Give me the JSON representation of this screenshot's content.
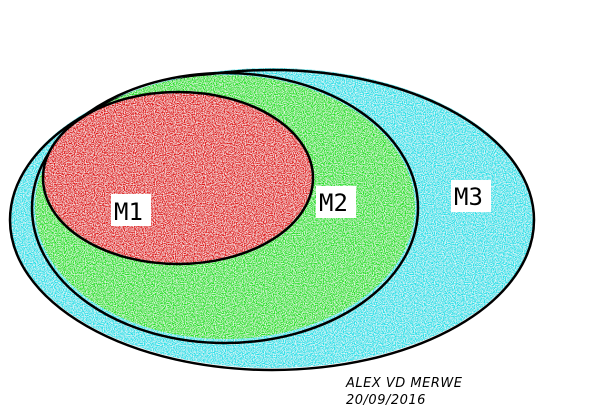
{
  "diagram": {
    "sets": [
      {
        "id": "m3",
        "label": "M3",
        "color": "#22e0e8"
      },
      {
        "id": "m2",
        "label": "M2",
        "color": "#22e022"
      },
      {
        "id": "m1",
        "label": "M1",
        "color": "#e01818"
      }
    ],
    "outline_color": "#000000"
  },
  "credit": {
    "author": "ALEX VD MERWE",
    "date": "20/09/2016"
  }
}
